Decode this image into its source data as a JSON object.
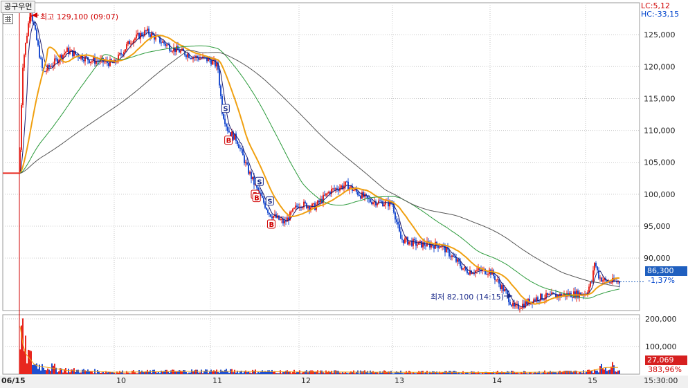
{
  "title": "공구우먼",
  "indicators": {
    "lc": "LC:5,12",
    "hc": "HC:-33,15"
  },
  "current": {
    "price": "86,300",
    "change": "-1,37%"
  },
  "volume_current": {
    "value": "27,069",
    "pct": "383,96%"
  },
  "annotations": {
    "max": "최고 129,100 (09:07)",
    "min": "최저 82,100 (14:15)"
  },
  "time_end": "15:30:00",
  "colors": {
    "up": "#e8261e",
    "down": "#1f4fd0",
    "ma_fast": "#1a1a6e",
    "ma_orange": "#f0a010",
    "ma_green": "#2a9a3a",
    "ma_gray": "#555555",
    "grid": "#c8c8c8"
  },
  "chart_data": [
    {
      "type": "candlestick",
      "title": "",
      "x_categories": [
        "06/15",
        "10",
        "11",
        "12",
        "13",
        "14",
        "15"
      ],
      "y_ticks": [
        90000,
        95000,
        100000,
        105000,
        110000,
        115000,
        120000,
        125000
      ],
      "y_tick_labels": [
        "90,000",
        "95,000",
        "100,000",
        "105,000",
        "110,000",
        "115,000",
        "120,000",
        "125,000"
      ],
      "ylim": [
        82000,
        130000
      ],
      "price_path": [
        [
          "09:00",
          103300
        ],
        [
          "09:02",
          120000
        ],
        [
          "09:07",
          129100
        ],
        [
          "09:15",
          119000
        ],
        [
          "09:30",
          122500
        ],
        [
          "09:45",
          121000
        ],
        [
          "10:00",
          120500
        ],
        [
          "10:10",
          124000
        ],
        [
          "10:20",
          125500
        ],
        [
          "10:35",
          123000
        ],
        [
          "10:50",
          121500
        ],
        [
          "11:00",
          121000
        ],
        [
          "11:05",
          120000
        ],
        [
          "11:08",
          113000
        ],
        [
          "11:12",
          110000
        ],
        [
          "11:18",
          108500
        ],
        [
          "11:25",
          104000
        ],
        [
          "11:32",
          100500
        ],
        [
          "11:40",
          97000
        ],
        [
          "11:50",
          95500
        ],
        [
          "12:00",
          98500
        ],
        [
          "12:10",
          98000
        ],
        [
          "12:20",
          100500
        ],
        [
          "12:30",
          101500
        ],
        [
          "12:45",
          99000
        ],
        [
          "13:00",
          98500
        ],
        [
          "13:05",
          93000
        ],
        [
          "13:15",
          92200
        ],
        [
          "13:30",
          92000
        ],
        [
          "13:45",
          88000
        ],
        [
          "14:00",
          88000
        ],
        [
          "14:10",
          84500
        ],
        [
          "14:15",
          82100
        ],
        [
          "14:30",
          83800
        ],
        [
          "14:45",
          84200
        ],
        [
          "15:00",
          84500
        ],
        [
          "15:10",
          86500
        ],
        [
          "15:13",
          89500
        ],
        [
          "15:20",
          87000
        ],
        [
          "15:30",
          86300
        ]
      ],
      "signals": [
        {
          "type": "S",
          "time": "11:10"
        },
        {
          "type": "B",
          "time": "11:12"
        },
        {
          "type": "B",
          "time": "11:30"
        },
        {
          "type": "B",
          "time": "11:31"
        },
        {
          "type": "S",
          "time": "11:33"
        },
        {
          "type": "S",
          "time": "11:40"
        },
        {
          "type": "B",
          "time": "11:41"
        }
      ]
    },
    {
      "type": "bar",
      "title": "",
      "y_tick_labels": [
        "100,000",
        "200,000"
      ],
      "ylim": [
        0,
        215000
      ],
      "volume_path": [
        [
          "09:00",
          210000
        ],
        [
          "09:03",
          90000
        ],
        [
          "09:10",
          35000
        ],
        [
          "09:30",
          15000
        ],
        [
          "10:00",
          8000
        ],
        [
          "11:00",
          12000
        ],
        [
          "12:00",
          9000
        ],
        [
          "13:00",
          8000
        ],
        [
          "14:00",
          7000
        ],
        [
          "15:00",
          9000
        ],
        [
          "15:30",
          27069
        ]
      ]
    }
  ]
}
